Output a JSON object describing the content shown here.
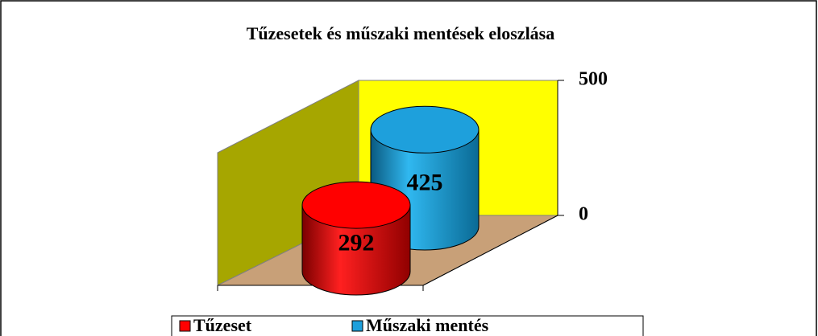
{
  "chart_data": {
    "type": "bar",
    "title": "Tűzesetek és műszaki mentések eloszlása",
    "series": [
      {
        "name": "Tűzeset",
        "color": "#ff0000",
        "values": [
          292
        ]
      },
      {
        "name": "Műszaki mentés",
        "color": "#1ea0dc",
        "values": [
          425
        ]
      }
    ],
    "ylim": [
      0,
      500
    ],
    "yticks": [
      0,
      500
    ]
  }
}
